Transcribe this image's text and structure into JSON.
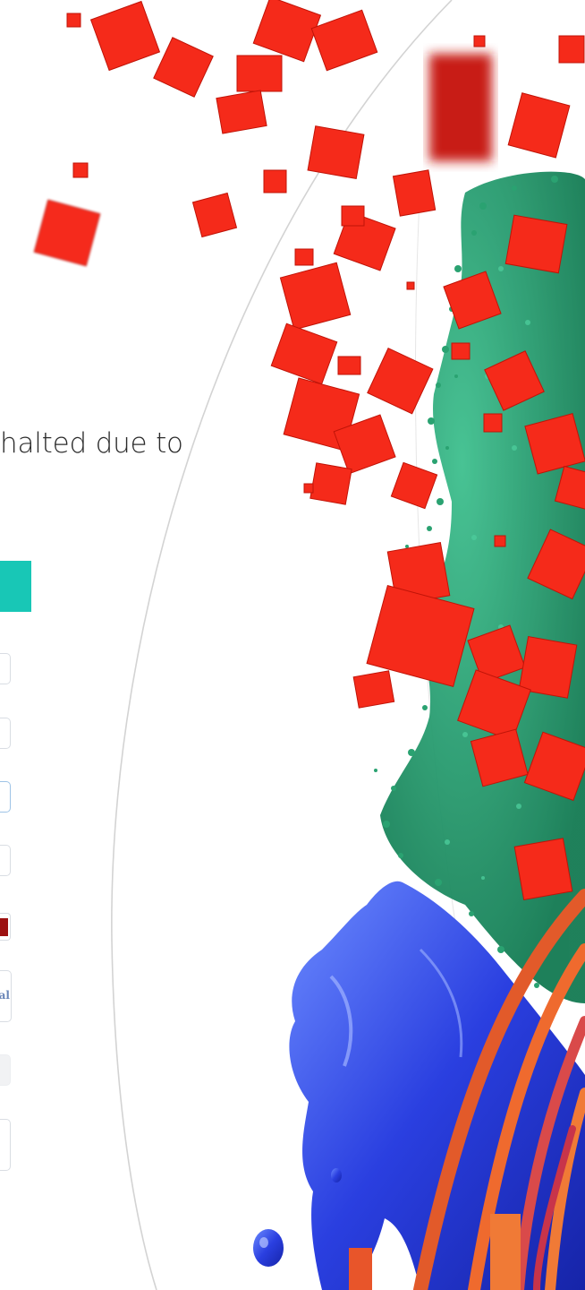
{
  "message": {
    "text": "halted due to"
  },
  "form": {
    "select_value": "al",
    "accent_color": "#18c7b6",
    "swatch_color": "#9c1010"
  },
  "icons": [
    "color-swatch-icon"
  ]
}
